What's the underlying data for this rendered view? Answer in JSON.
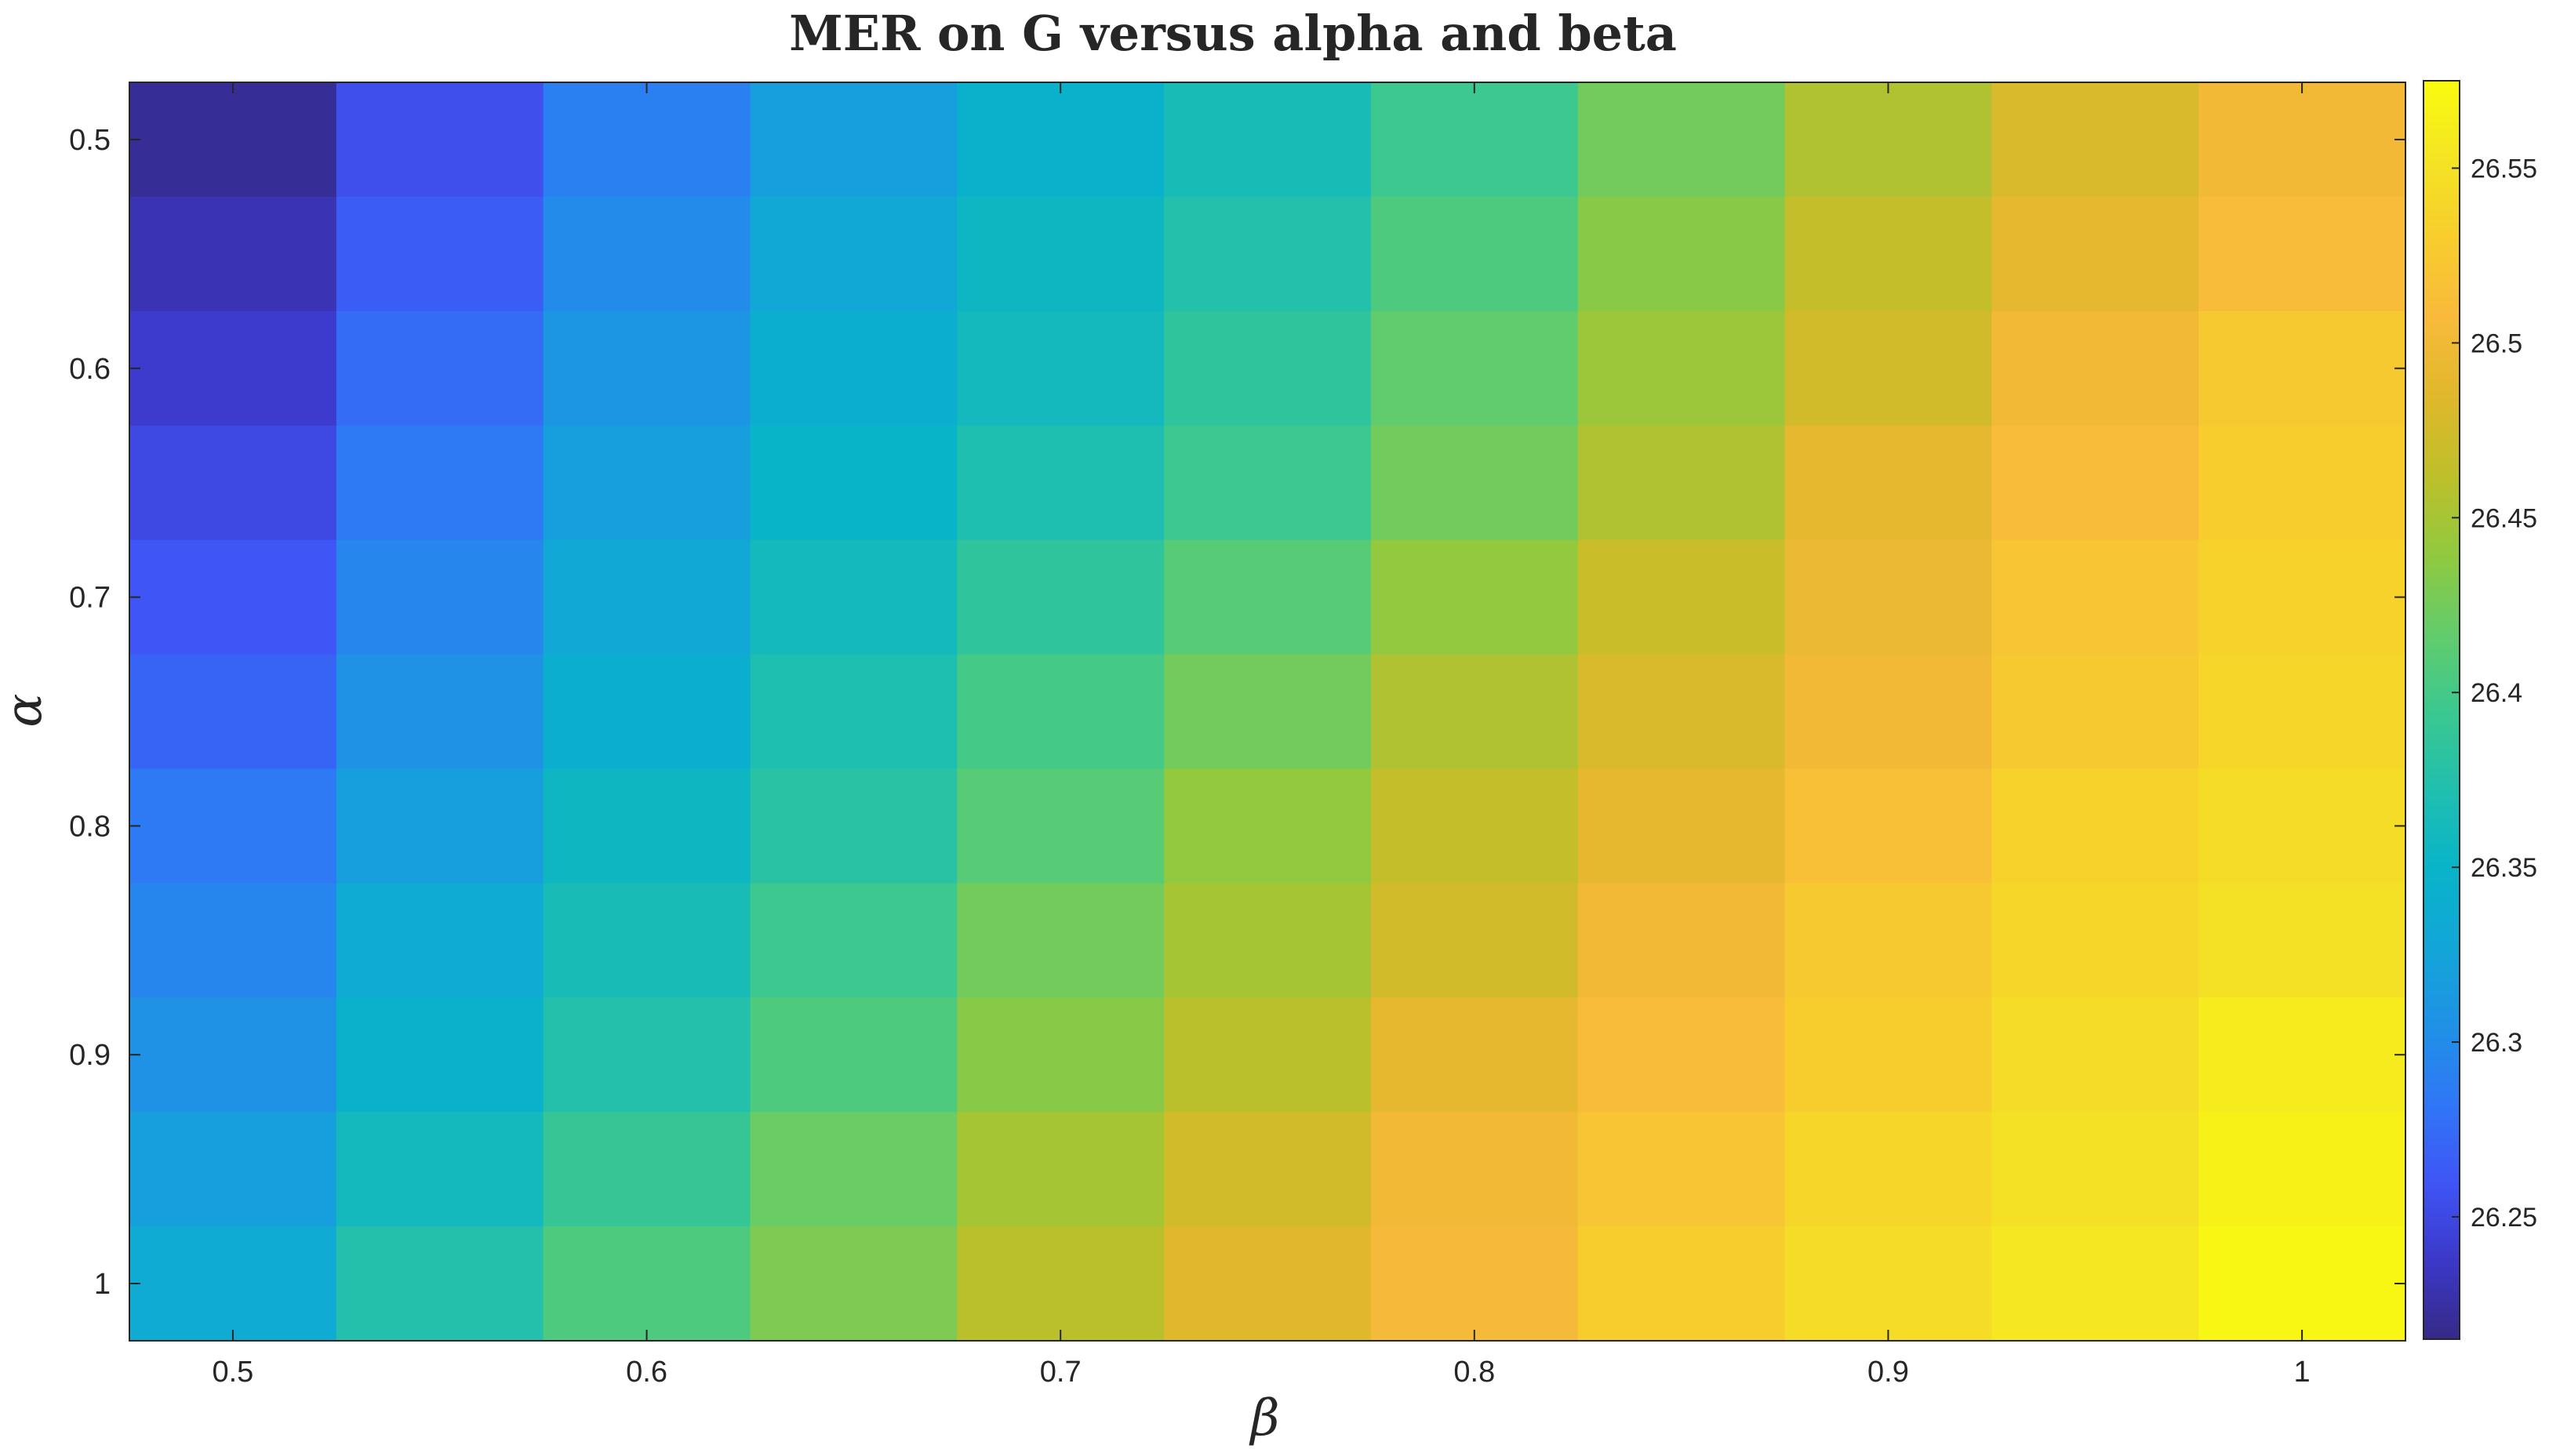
{
  "chart_data": {
    "type": "heatmap",
    "title": "MER on G versus alpha and beta",
    "xlabel": "β",
    "ylabel": "α",
    "x": [
      0.5,
      0.55,
      0.6,
      0.65,
      0.7,
      0.75,
      0.8,
      0.85,
      0.9,
      0.95,
      1.0
    ],
    "y": [
      0.5,
      0.55,
      0.6,
      0.65,
      0.7,
      0.75,
      0.8,
      0.85,
      0.9,
      0.95,
      1.0
    ],
    "xlim": [
      0.475,
      1.025
    ],
    "ylim": [
      0.475,
      1.025
    ],
    "y_direction": "reversed",
    "x_tick_labels": [
      "0.5",
      "0.6",
      "0.7",
      "0.8",
      "0.9",
      "1"
    ],
    "y_tick_labels": [
      "0.5",
      "0.6",
      "0.7",
      "0.8",
      "0.9",
      "1"
    ],
    "colormap": "parula",
    "clim": [
      26.215,
      26.575
    ],
    "colorbar": {
      "position": "right",
      "ticks": [
        26.25,
        26.3,
        26.35,
        26.4,
        26.45,
        26.5,
        26.55
      ],
      "tick_labels": [
        "26.25",
        "26.3",
        "26.35",
        "26.4",
        "26.45",
        "26.5",
        "26.55"
      ]
    },
    "grid": false,
    "z": [
      [
        26.22,
        26.255,
        26.29,
        26.32,
        26.345,
        26.365,
        26.395,
        26.425,
        26.455,
        26.48,
        26.5
      ],
      [
        26.23,
        26.265,
        26.3,
        26.33,
        26.355,
        26.375,
        26.405,
        26.435,
        26.465,
        26.49,
        26.51
      ],
      [
        26.24,
        26.275,
        26.31,
        26.34,
        26.36,
        26.385,
        26.415,
        26.445,
        26.475,
        26.5,
        26.525
      ],
      [
        26.25,
        26.285,
        26.32,
        26.35,
        26.37,
        26.395,
        26.425,
        26.455,
        26.49,
        26.51,
        26.53
      ],
      [
        26.26,
        26.295,
        26.33,
        26.36,
        26.385,
        26.41,
        26.44,
        26.47,
        26.495,
        26.52,
        26.535
      ],
      [
        26.27,
        26.305,
        26.34,
        26.37,
        26.4,
        26.425,
        26.455,
        26.48,
        26.5,
        26.525,
        26.54
      ],
      [
        26.285,
        26.32,
        26.355,
        26.38,
        26.41,
        26.44,
        26.465,
        26.49,
        26.515,
        26.535,
        26.545
      ],
      [
        26.295,
        26.335,
        26.365,
        26.395,
        26.425,
        26.45,
        26.475,
        26.5,
        26.525,
        26.54,
        26.55
      ],
      [
        26.305,
        26.345,
        26.375,
        26.405,
        26.435,
        26.46,
        26.49,
        26.51,
        26.53,
        26.545,
        26.56
      ],
      [
        26.32,
        26.36,
        26.39,
        26.42,
        26.45,
        26.475,
        26.5,
        26.52,
        26.54,
        26.55,
        26.565
      ],
      [
        26.335,
        26.375,
        26.405,
        26.43,
        26.46,
        26.485,
        26.505,
        26.53,
        26.545,
        26.555,
        26.57
      ]
    ]
  },
  "colors": {
    "parula_stops": [
      "#352a87",
      "#3c38c9",
      "#3f55f6",
      "#2f77f6",
      "#1f92e6",
      "#12a6d7",
      "#08b4c8",
      "#21bfae",
      "#3cc88f",
      "#64cc6a",
      "#92c93e",
      "#bfbf2a",
      "#e0b82b",
      "#f9ba3c",
      "#f7cd2d",
      "#f4e424",
      "#f9fb0e"
    ],
    "axis": "#262626"
  }
}
